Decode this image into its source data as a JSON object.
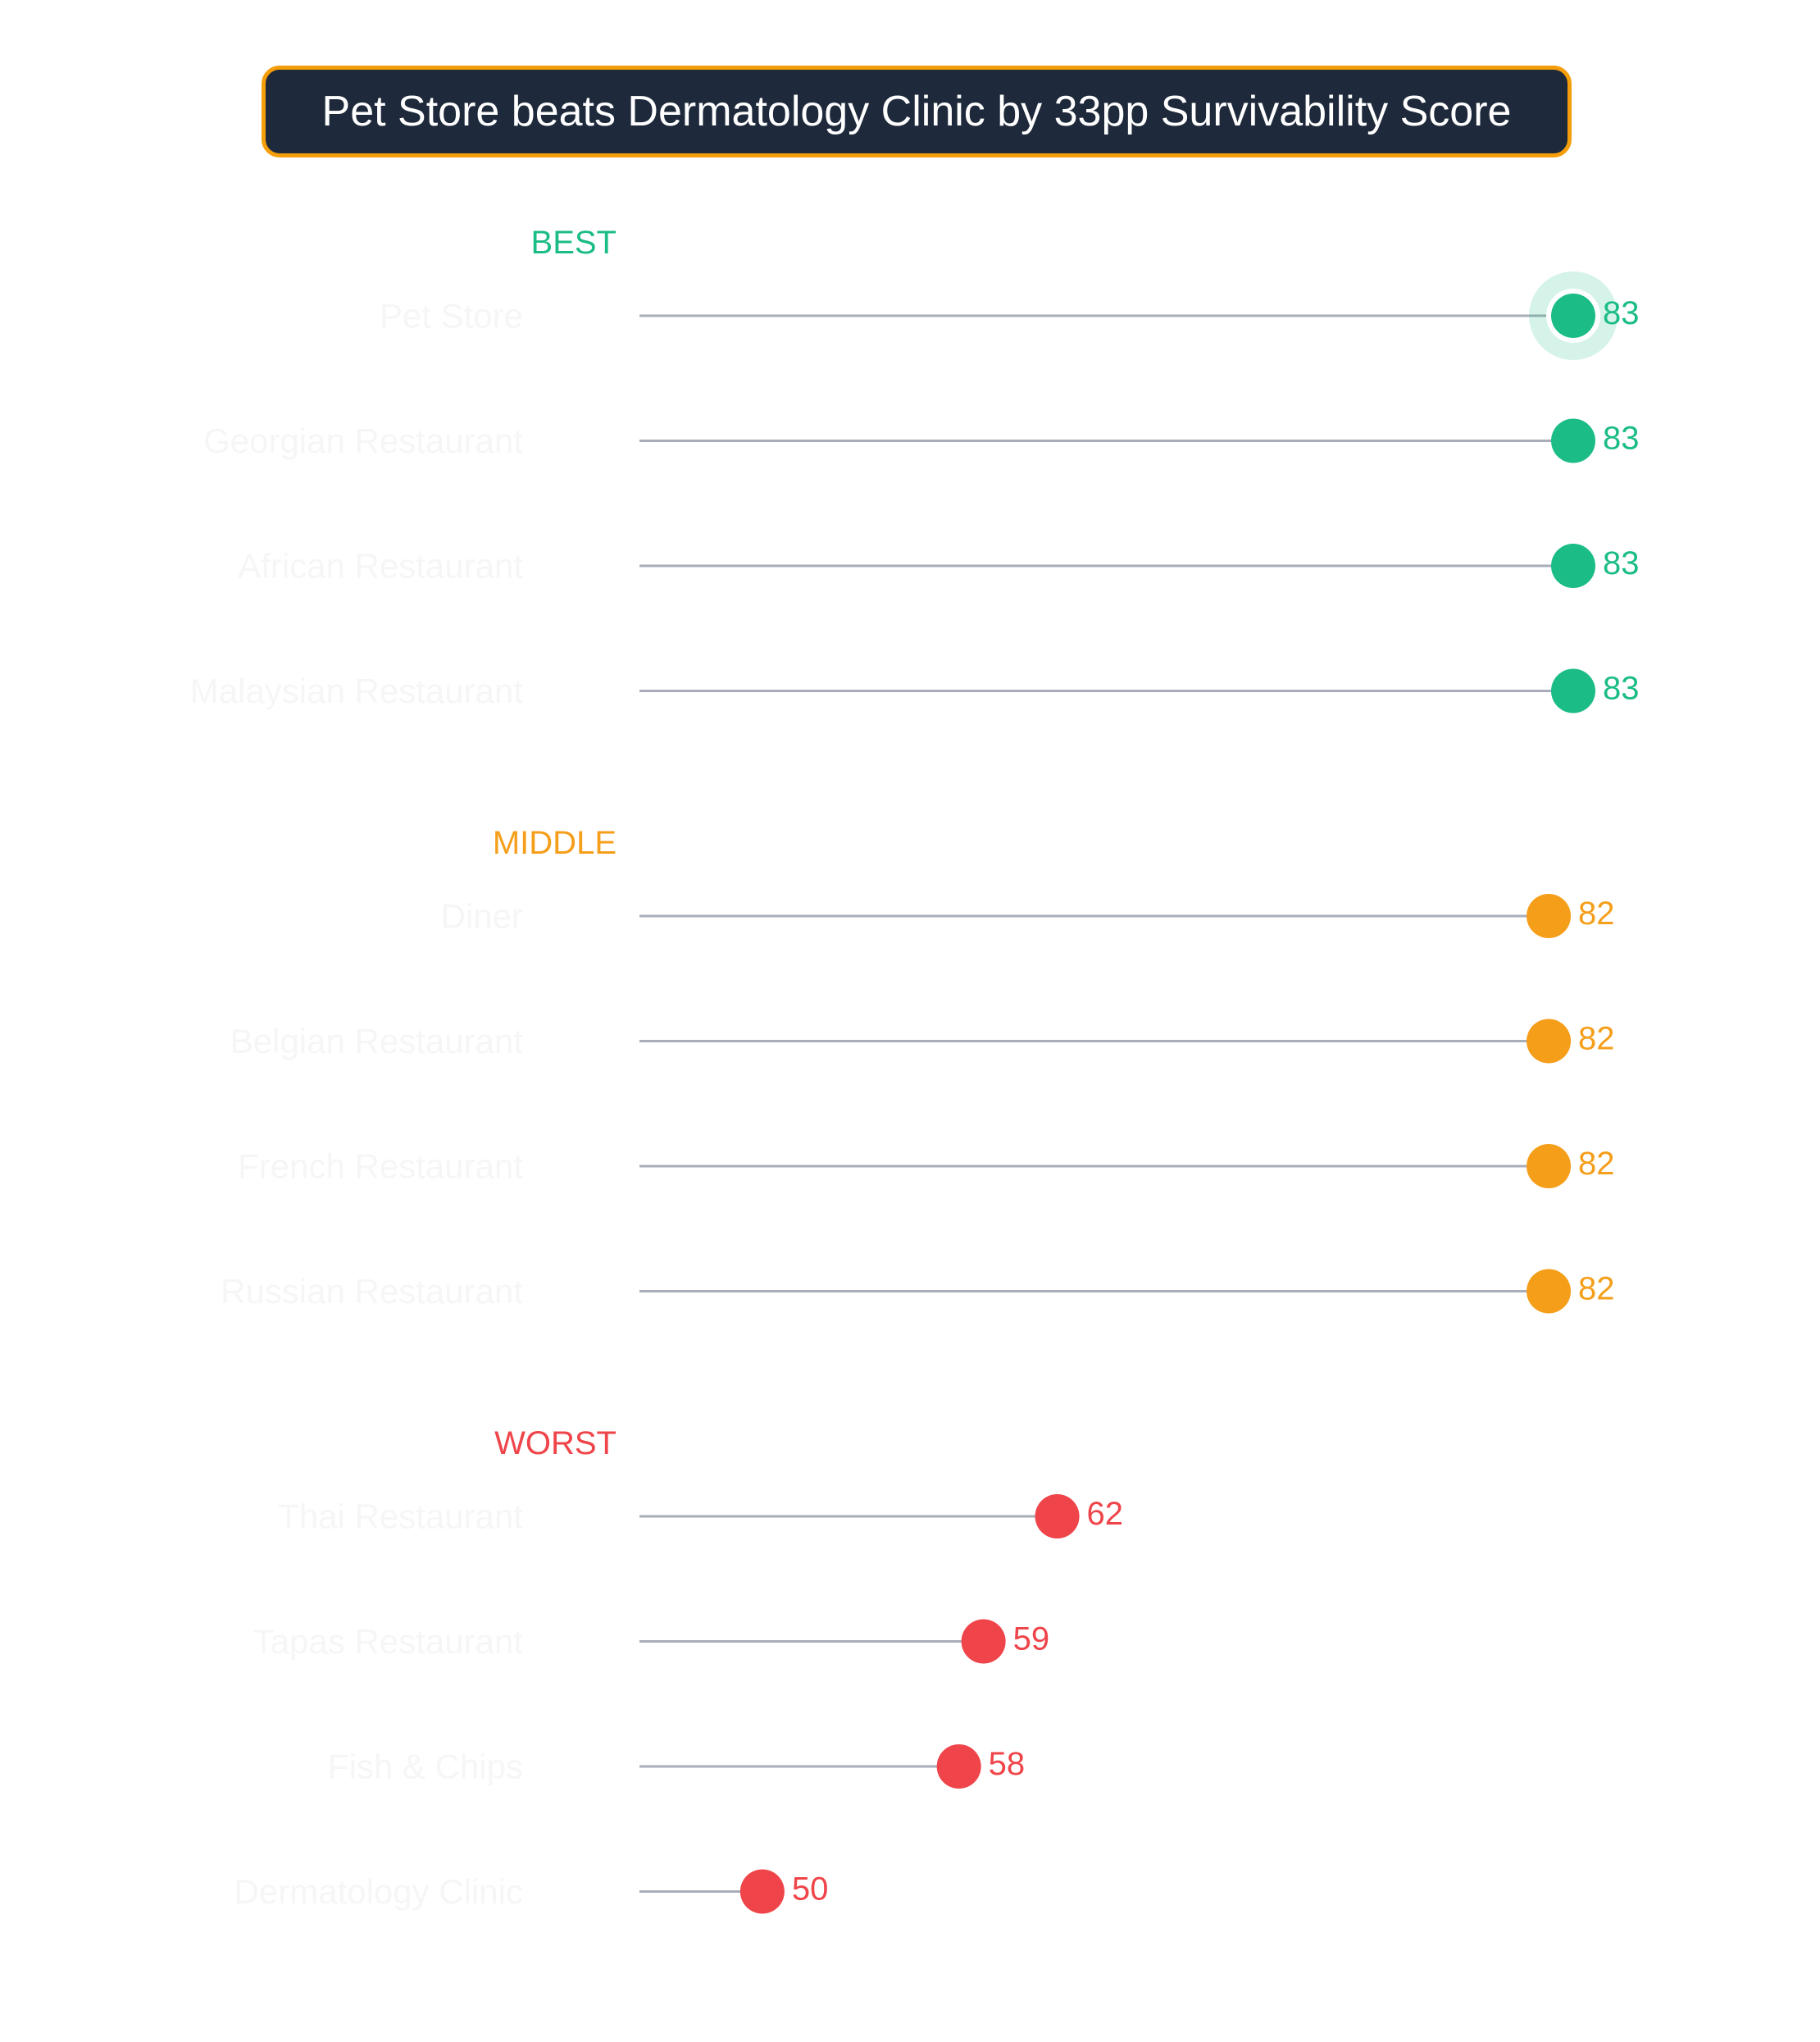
{
  "title": "Pet Store beats Dermatology Clinic by 33pp Survivability Score",
  "colors": {
    "best": "#1cbc87",
    "middle": "#f59e1a",
    "worst": "#ef4449",
    "stem": "#a9adb9",
    "title_bg": "#1e293b",
    "title_border": "#f59e0b"
  },
  "chart_data": {
    "type": "lollipop",
    "title": "Pet Store beats Dermatology Clinic by 33pp Survivability Score",
    "xlabel": "",
    "ylabel": "",
    "xlim": [
      45,
      83.3
    ],
    "groups": [
      {
        "name": "BEST",
        "color_key": "best",
        "items": [
          {
            "category": "Pet Store",
            "value": 83,
            "label": "83",
            "highlight": true
          },
          {
            "category": "Georgian Restaurant",
            "value": 83,
            "label": "83"
          },
          {
            "category": "African Restaurant",
            "value": 83,
            "label": "83"
          },
          {
            "category": "Malaysian Restaurant",
            "value": 83,
            "label": "83"
          }
        ]
      },
      {
        "name": "MIDDLE",
        "color_key": "middle",
        "items": [
          {
            "category": "Diner",
            "value": 82,
            "label": "82"
          },
          {
            "category": "Belgian Restaurant",
            "value": 82,
            "label": "82"
          },
          {
            "category": "French Restaurant",
            "value": 82,
            "label": "82"
          },
          {
            "category": "Russian Restaurant",
            "value": 82,
            "label": "82"
          }
        ]
      },
      {
        "name": "WORST",
        "color_key": "worst",
        "items": [
          {
            "category": "Thai Restaurant",
            "value": 62,
            "label": "62"
          },
          {
            "category": "Tapas Restaurant",
            "value": 59,
            "label": "59"
          },
          {
            "category": "Fish & Chips",
            "value": 58,
            "label": "58"
          },
          {
            "category": "Dermatology Clinic",
            "value": 50,
            "label": "50"
          }
        ]
      }
    ]
  }
}
